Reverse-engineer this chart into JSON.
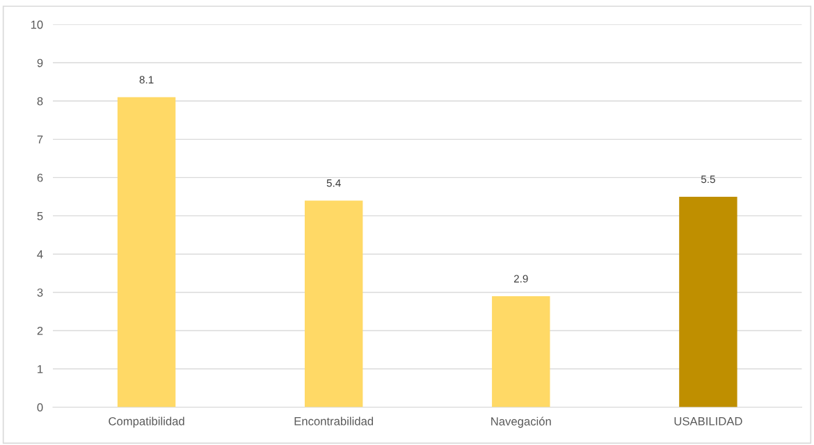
{
  "chart_data": {
    "type": "bar",
    "categories": [
      "Compatibilidad",
      "Encontrabilidad",
      "Navegación",
      "USABILIDAD"
    ],
    "values": [
      8.1,
      5.4,
      2.9,
      5.5
    ],
    "colors": [
      "#ffd966",
      "#ffd966",
      "#ffd966",
      "#bf8f00"
    ],
    "ylim": [
      0,
      10
    ],
    "yticks": [
      0,
      1,
      2,
      3,
      4,
      5,
      6,
      7,
      8,
      9,
      10
    ],
    "grid": "y",
    "data_labels": true
  }
}
